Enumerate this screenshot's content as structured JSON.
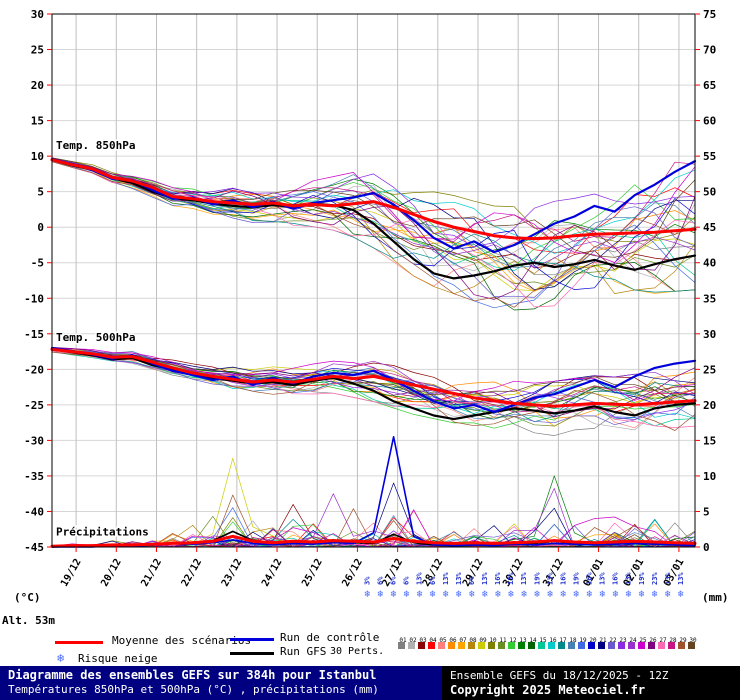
{
  "chart_data": {
    "type": "line",
    "title": "Diagramme des ensembles GEFS sur 384h pour Istanbul",
    "subtitle": "Températures 850hPa et 500hPa (°C) , précipitations (mm)",
    "x_tick_labels": [
      "19/12",
      "20/12",
      "21/12",
      "22/12",
      "23/12",
      "24/12",
      "25/12",
      "26/12",
      "27/12",
      "28/12",
      "29/12",
      "30/12",
      "31/12",
      "01/01",
      "02/01",
      "03/01"
    ],
    "left_axis": {
      "label": "(°C)",
      "min": -45,
      "max": 30,
      "step": 5
    },
    "right_axis": {
      "label": "(mm)",
      "min": 0,
      "max": 75,
      "step": 5
    },
    "altitude_label": "Alt. 53m",
    "colors": {
      "mean": "#ff0000",
      "control": "#0000dd",
      "gfs": "#000000",
      "grid_h": "#d6d6d6",
      "grid_v": "#c0c0c0",
      "frame": "#000000",
      "tick": "#ff0000",
      "snow_flake": "#4a6cff",
      "snow_label": "#2233cc"
    },
    "panels": {
      "t850": {
        "label": "Temp. 850hPa",
        "mean": [
          9.5,
          8.8,
          8.2,
          7.0,
          6.5,
          5.6,
          4.3,
          4.0,
          3.6,
          3.4,
          3.2,
          3.4,
          3.0,
          3.2,
          3.0,
          3.3,
          3.6,
          2.8,
          1.8,
          0.8,
          0.0,
          -0.6,
          -1.2,
          -1.5,
          -1.6,
          -1.5,
          -1.2,
          -1.0,
          -0.9,
          -0.8,
          -0.7,
          -0.5,
          -0.3
        ],
        "control": [
          9.6,
          8.9,
          8.0,
          6.8,
          6.6,
          5.2,
          4.0,
          4.2,
          3.2,
          3.8,
          2.8,
          3.6,
          2.6,
          3.4,
          3.8,
          4.2,
          4.8,
          3.2,
          1.0,
          -1.5,
          -3.0,
          -2.0,
          -3.5,
          -2.5,
          -1.0,
          0.5,
          1.5,
          3.0,
          2.2,
          4.5,
          6.0,
          7.8,
          9.3
        ],
        "gfs": [
          9.5,
          8.7,
          8.1,
          6.9,
          6.2,
          5.0,
          4.1,
          3.8,
          3.3,
          3.0,
          2.8,
          3.1,
          2.9,
          3.3,
          3.1,
          2.4,
          0.5,
          -2.0,
          -4.5,
          -6.5,
          -7.2,
          -6.8,
          -6.2,
          -5.4,
          -5.0,
          -5.6,
          -5.2,
          -4.6,
          -5.4,
          -6.0,
          -5.2,
          -4.5,
          -4.0
        ],
        "env_min": [
          9.2,
          8.4,
          7.6,
          6.2,
          5.4,
          4.2,
          3.0,
          2.6,
          1.8,
          1.2,
          0.6,
          0.4,
          0.2,
          0.0,
          -0.5,
          -1.5,
          -3.0,
          -5.0,
          -7.0,
          -8.5,
          -9.5,
          -10.5,
          -11.5,
          -12.5,
          -13.0,
          -11.5,
          -10.0,
          -9.0,
          -9.5,
          -9.0,
          -9.5,
          -9.2,
          -9.0
        ],
        "env_max": [
          9.8,
          9.3,
          8.8,
          7.8,
          7.4,
          6.6,
          5.6,
          5.4,
          5.2,
          5.6,
          5.8,
          6.2,
          6.0,
          6.6,
          7.2,
          7.8,
          7.6,
          6.8,
          6.0,
          5.2,
          4.6,
          4.2,
          3.8,
          3.6,
          3.4,
          3.8,
          4.2,
          5.0,
          5.8,
          7.0,
          8.4,
          9.4,
          10.0
        ]
      },
      "t500": {
        "label": "Temp. 500hPa",
        "mean": [
          -17.2,
          -17.5,
          -17.8,
          -18.3,
          -18.2,
          -19.0,
          -19.8,
          -20.5,
          -21.0,
          -21.4,
          -21.8,
          -21.5,
          -21.8,
          -21.4,
          -21.0,
          -21.3,
          -21.0,
          -21.6,
          -22.2,
          -22.8,
          -23.4,
          -24.0,
          -24.4,
          -24.8,
          -25.0,
          -25.2,
          -25.0,
          -24.8,
          -24.9,
          -25.0,
          -24.8,
          -24.6,
          -24.4
        ],
        "control": [
          -17.0,
          -17.4,
          -17.9,
          -18.5,
          -18.0,
          -19.2,
          -20.2,
          -20.8,
          -21.5,
          -21.0,
          -22.2,
          -21.2,
          -22.0,
          -21.0,
          -20.5,
          -20.8,
          -20.2,
          -21.5,
          -23.0,
          -24.5,
          -25.5,
          -25.0,
          -26.0,
          -25.0,
          -24.0,
          -23.5,
          -22.5,
          -21.5,
          -22.5,
          -21.0,
          -19.8,
          -19.2,
          -18.8
        ],
        "gfs": [
          -17.1,
          -17.6,
          -18.0,
          -18.6,
          -18.4,
          -19.4,
          -20.0,
          -20.6,
          -21.2,
          -21.6,
          -22.0,
          -21.8,
          -22.2,
          -21.6,
          -21.2,
          -22.0,
          -23.0,
          -24.5,
          -25.5,
          -26.5,
          -27.0,
          -26.5,
          -26.0,
          -25.5,
          -25.8,
          -26.2,
          -25.8,
          -25.2,
          -26.0,
          -26.5,
          -25.5,
          -25.0,
          -24.8
        ],
        "env_min": [
          -17.6,
          -18.0,
          -18.4,
          -18.9,
          -19.2,
          -20.0,
          -21.0,
          -21.8,
          -22.4,
          -23.0,
          -23.4,
          -23.6,
          -23.8,
          -23.6,
          -23.4,
          -24.0,
          -24.6,
          -25.5,
          -26.4,
          -27.0,
          -27.6,
          -28.0,
          -28.4,
          -28.7,
          -29.0,
          -29.4,
          -28.6,
          -28.4,
          -28.8,
          -29.2,
          -29.0,
          -28.7,
          -28.5
        ],
        "env_max": [
          -16.8,
          -17.0,
          -17.2,
          -17.6,
          -17.4,
          -18.0,
          -18.6,
          -19.2,
          -19.6,
          -19.6,
          -20.0,
          -19.6,
          -19.8,
          -19.2,
          -18.8,
          -19.0,
          -18.8,
          -19.4,
          -20.0,
          -20.6,
          -21.0,
          -21.2,
          -21.4,
          -21.6,
          -21.8,
          -21.6,
          -21.2,
          -20.8,
          -21.0,
          -20.6,
          -19.8,
          -19.4,
          -19.0
        ]
      },
      "precip": {
        "label": "Précipitations",
        "mean": [
          0.1,
          0.2,
          0.2,
          0.3,
          0.3,
          0.4,
          0.5,
          0.6,
          0.8,
          1.5,
          0.8,
          0.6,
          0.8,
          0.7,
          0.9,
          0.8,
          0.7,
          1.2,
          0.8,
          0.6,
          0.5,
          0.6,
          0.5,
          0.6,
          0.7,
          0.9,
          0.7,
          0.6,
          0.7,
          0.8,
          0.7,
          0.6,
          0.5
        ],
        "control": [
          0,
          0,
          0,
          0.2,
          0.1,
          0.3,
          0.5,
          0.4,
          0.6,
          1.0,
          0.5,
          0.3,
          0.5,
          0.4,
          0.6,
          0.5,
          2.0,
          15.5,
          1.5,
          0.3,
          0.2,
          0.3,
          0.2,
          0.4,
          0.3,
          0.5,
          0.4,
          0.3,
          0.4,
          0.5,
          0.4,
          0.3,
          0.2
        ],
        "gfs": [
          0,
          0.1,
          0.1,
          0.2,
          0.2,
          0.3,
          0.6,
          0.5,
          0.9,
          2.2,
          0.9,
          0.4,
          0.7,
          0.5,
          0.8,
          0.6,
          0.5,
          1.8,
          0.6,
          0.3,
          0.2,
          0.3,
          0.3,
          0.4,
          0.5,
          0.8,
          0.5,
          0.4,
          0.5,
          0.6,
          0.5,
          0.4,
          0.3
        ],
        "member_max": [
          0.3,
          0.5,
          0.5,
          1.0,
          1.2,
          2.0,
          3.0,
          3.5,
          5.0,
          12.5,
          6.0,
          4.0,
          6.5,
          5.0,
          8.0,
          6.0,
          5.0,
          9.0,
          6.0,
          4.0,
          3.0,
          4.0,
          3.5,
          4.5,
          5.0,
          10.0,
          6.0,
          4.5,
          5.0,
          6.5,
          5.5,
          4.5,
          4.0
        ],
        "highlight_spikes": [
          {
            "member": 8,
            "index": 9,
            "mm": 12.5
          },
          {
            "member": 12,
            "index": 25,
            "mm": 10.0
          },
          {
            "member": 20,
            "index": 17,
            "mm": 9.0
          },
          {
            "member": 23,
            "index": 14,
            "mm": 7.5
          },
          {
            "member": 2,
            "index": 12,
            "mm": 6.0
          }
        ]
      }
    },
    "snow_risk": {
      "icon_char": "❄",
      "percent_labels": [
        "3%",
        "6%",
        "6%",
        "6%",
        "13%",
        "6%",
        "13%",
        "13%",
        "6%",
        "13%",
        "16%",
        "13%",
        "13%",
        "19%",
        "13%",
        "16%",
        "19%",
        "16%",
        "13%",
        "16%",
        "13%",
        "19%",
        "23%",
        "13%",
        "13%"
      ]
    },
    "member_colors": [
      "#808080",
      "#b0b0b0",
      "#8b0000",
      "#ff0000",
      "#ff7f7f",
      "#ff8c00",
      "#ffa500",
      "#b8860b",
      "#cccc00",
      "#808000",
      "#6b8e23",
      "#32cd32",
      "#008000",
      "#006400",
      "#00c896",
      "#00cccc",
      "#008b8b",
      "#4682b4",
      "#4169e1",
      "#0000cd",
      "#000080",
      "#6a5acd",
      "#8a2be2",
      "#9932cc",
      "#cc00cc",
      "#800080",
      "#ff69b4",
      "#c71585",
      "#a0522d",
      "#654321"
    ]
  },
  "legend": {
    "mean_label": "Moyenne des scénarios",
    "control_label": "Run de contrôle",
    "gfs_label": "Run GFS",
    "perts_label": "30 Perts.",
    "snow_label": "Risque neige",
    "snow_icon": "❄",
    "pert_numbers": [
      "01",
      "02",
      "03",
      "04",
      "05",
      "06",
      "07",
      "08",
      "09",
      "10",
      "11",
      "12",
      "13",
      "14",
      "15",
      "16",
      "17",
      "18",
      "19",
      "20",
      "21",
      "22",
      "23",
      "24",
      "25",
      "26",
      "27",
      "28",
      "29",
      "30"
    ]
  },
  "footer": {
    "left_title": "Diagramme des ensembles GEFS sur 384h pour Istanbul",
    "left_subtitle": "Températures 850hPa et 500hPa (°C) , précipitations (mm)",
    "right_line1": "Ensemble GEFS du 18/12/2025 - 12Z",
    "right_line2": "Copyright 2025 Meteociel.fr"
  }
}
